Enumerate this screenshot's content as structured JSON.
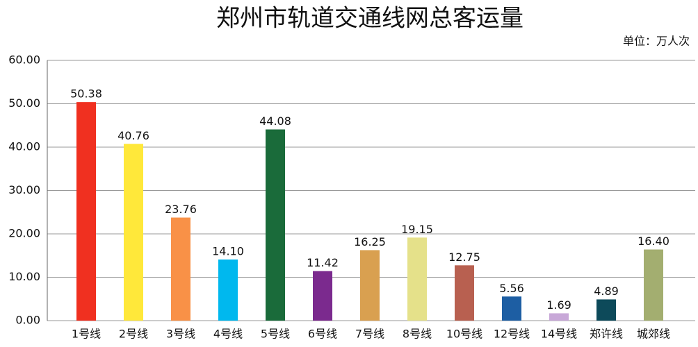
{
  "chart_data": {
    "type": "bar",
    "title": "郑州市轨道交通线网总客运量",
    "unit_label": "单位：万人次",
    "categories": [
      "1号线",
      "2号线",
      "3号线",
      "4号线",
      "5号线",
      "6号线",
      "7号线",
      "8号线",
      "10号线",
      "12号线",
      "14号线",
      "郑许线",
      "城郊线"
    ],
    "values": [
      50.38,
      40.76,
      23.76,
      14.1,
      44.08,
      11.42,
      16.25,
      19.15,
      12.75,
      5.56,
      1.69,
      4.89,
      16.4
    ],
    "value_labels": [
      "50.38",
      "40.76",
      "23.76",
      "14.10",
      "44.08",
      "11.42",
      "16.25",
      "19.15",
      "12.75",
      "5.56",
      "1.69",
      "4.89",
      "16.40"
    ],
    "colors": [
      "#f03020",
      "#ffe83a",
      "#f99147",
      "#00b8ee",
      "#1a6b3a",
      "#7b2a8e",
      "#d9a050",
      "#e5e18a",
      "#b86050",
      "#1d5ea3",
      "#c8a8d8",
      "#0d4a5a",
      "#a3ae70"
    ],
    "ylim": [
      0,
      60
    ],
    "yticks": [
      {
        "value": 0,
        "label": "0.00"
      },
      {
        "value": 10,
        "label": "10.00"
      },
      {
        "value": 20,
        "label": "20.00"
      },
      {
        "value": 30,
        "label": "30.00"
      },
      {
        "value": 40,
        "label": "40.00"
      },
      {
        "value": 50,
        "label": "50.00"
      },
      {
        "value": 60,
        "label": "60.00"
      }
    ],
    "grid": true
  }
}
